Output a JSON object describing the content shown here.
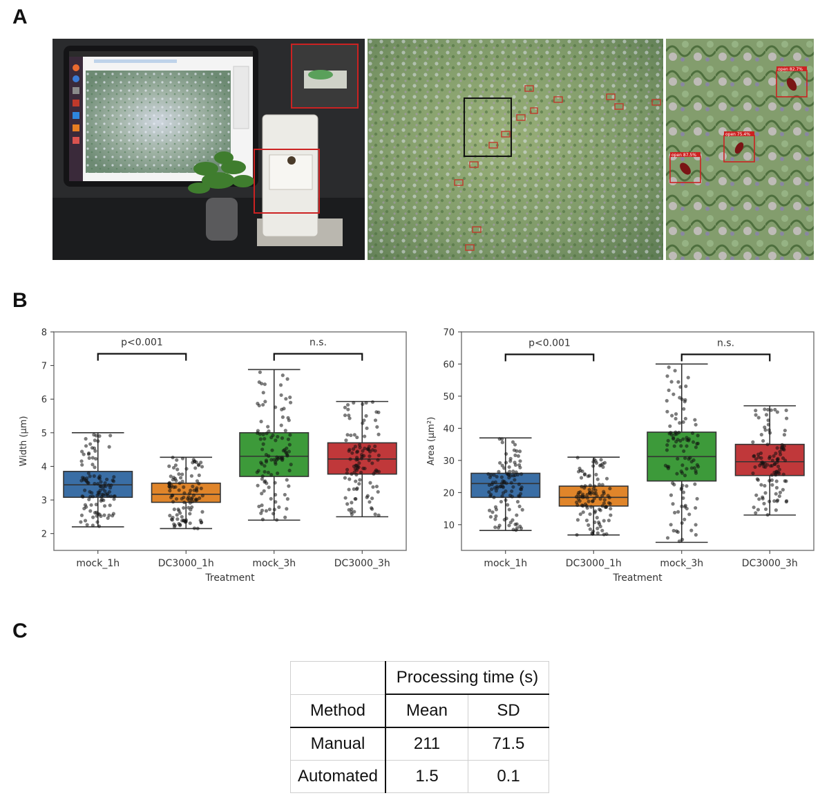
{
  "panel_labels": {
    "a": "A",
    "b": "B",
    "c": "C"
  },
  "panel_a": {
    "photo_left": "tablet-microscope-setup",
    "photo_middle": "leaf-surface-micrograph",
    "photo_right": "stomata-detections-zoom",
    "detections": [
      "open 82.7%",
      "open 75.4%",
      "open 87.5%"
    ]
  },
  "colors": {
    "mock_1h": "#3a6ea5",
    "DC3000_1h": "#e0852a",
    "mock_3h": "#3d9a3a",
    "DC3000_3h": "#c0383a"
  },
  "chart_data": [
    {
      "type": "box",
      "xlabel": "Treatment",
      "ylabel": "Width (µm)",
      "ylim": [
        1.5,
        8
      ],
      "yticks": [
        2,
        3,
        4,
        5,
        6,
        7,
        8
      ],
      "categories": [
        "mock_1h",
        "DC3000_1h",
        "mock_3h",
        "DC3000_3h"
      ],
      "boxes": [
        {
          "name": "mock_1h",
          "whisker_low": 2.2,
          "q1": 3.08,
          "median": 3.45,
          "q3": 3.85,
          "whisker_high": 5.0
        },
        {
          "name": "DC3000_1h",
          "whisker_low": 2.15,
          "q1": 2.93,
          "median": 3.17,
          "q3": 3.5,
          "whisker_high": 4.27
        },
        {
          "name": "mock_3h",
          "whisker_low": 2.4,
          "q1": 3.7,
          "median": 4.3,
          "q3": 5.0,
          "whisker_high": 6.88
        },
        {
          "name": "DC3000_3h",
          "whisker_low": 2.5,
          "q1": 3.77,
          "median": 4.22,
          "q3": 4.7,
          "whisker_high": 5.93
        }
      ],
      "significance": [
        {
          "pair": [
            0,
            1
          ],
          "label": "p<0.001",
          "y": 7.35
        },
        {
          "pair": [
            2,
            3
          ],
          "label": "n.s.",
          "y": 7.35
        }
      ]
    },
    {
      "type": "box",
      "xlabel": "Treatment",
      "ylabel": "Area (µm²)",
      "ylim": [
        2,
        70
      ],
      "yticks": [
        10,
        20,
        30,
        40,
        50,
        60,
        70
      ],
      "categories": [
        "mock_1h",
        "DC3000_1h",
        "mock_3h",
        "DC3000_3h"
      ],
      "boxes": [
        {
          "name": "mock_1h",
          "whisker_low": 8.2,
          "q1": 18.5,
          "median": 22.8,
          "q3": 26.0,
          "whisker_high": 37.0
        },
        {
          "name": "DC3000_1h",
          "whisker_low": 6.8,
          "q1": 15.8,
          "median": 18.5,
          "q3": 22.0,
          "whisker_high": 31.0
        },
        {
          "name": "mock_3h",
          "whisker_low": 4.5,
          "q1": 23.6,
          "median": 31.2,
          "q3": 38.8,
          "whisker_high": 60.0
        },
        {
          "name": "DC3000_3h",
          "whisker_low": 13.0,
          "q1": 25.3,
          "median": 29.6,
          "q3": 35.0,
          "whisker_high": 47.0
        }
      ],
      "significance": [
        {
          "pair": [
            0,
            1
          ],
          "label": "p<0.001",
          "y": 63
        },
        {
          "pair": [
            2,
            3
          ],
          "label": "n.s.",
          "y": 63
        }
      ]
    }
  ],
  "table": {
    "group_header": "Processing time (s)",
    "col_method": "Method",
    "col_mean": "Mean",
    "col_sd": "SD",
    "rows": [
      {
        "method": "Manual",
        "mean": "211",
        "sd": "71.5"
      },
      {
        "method": "Automated",
        "mean": "1.5",
        "sd": "0.1"
      }
    ]
  }
}
